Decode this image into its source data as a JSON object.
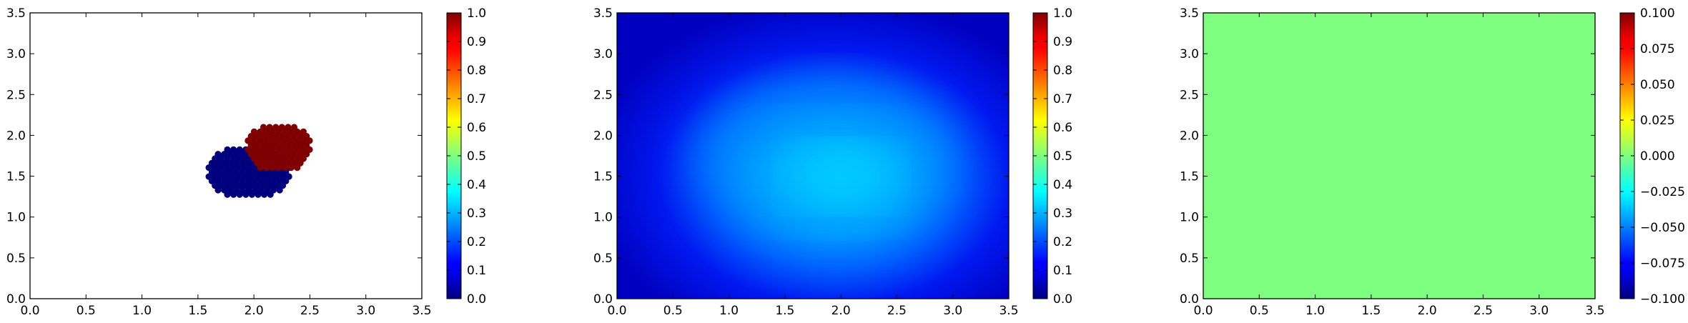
{
  "chart_data": [
    {
      "type": "scatter",
      "panel": "left",
      "xlim": [
        0,
        3.5
      ],
      "ylim": [
        0,
        3.5
      ],
      "x_ticks": [
        "0.0",
        "0.5",
        "1.0",
        "1.5",
        "2.0",
        "2.5",
        "3.0",
        "3.5"
      ],
      "y_ticks": [
        "0.0",
        "0.5",
        "1.0",
        "1.5",
        "2.0",
        "2.5",
        "3.0",
        "3.5"
      ],
      "colormap": "jet",
      "colorbar": {
        "range": [
          0,
          1
        ],
        "ticks": [
          "0.0",
          "0.1",
          "0.2",
          "0.3",
          "0.4",
          "0.5",
          "0.6",
          "0.7",
          "0.8",
          "0.9",
          "1.0"
        ]
      },
      "clusters": [
        {
          "value": 0.0,
          "color": "#00007f",
          "center": [
            1.95,
            1.55
          ],
          "radius_x": 0.38,
          "radius_y": 0.33
        },
        {
          "value": 1.0,
          "color": "#7f0000",
          "center": [
            2.22,
            1.85
          ],
          "radius_x": 0.3,
          "radius_y": 0.3
        }
      ],
      "grid": false
    },
    {
      "type": "heatmap",
      "panel": "middle",
      "xlim": [
        0,
        3.5
      ],
      "ylim": [
        0,
        3.5
      ],
      "x_ticks": [
        "0.0",
        "0.5",
        "1.0",
        "1.5",
        "2.0",
        "2.5",
        "3.0",
        "3.5"
      ],
      "y_ticks": [
        "0.0",
        "0.5",
        "1.0",
        "1.5",
        "2.0",
        "2.5",
        "3.0",
        "3.5"
      ],
      "colormap": "jet",
      "colorbar": {
        "range": [
          0,
          1
        ],
        "ticks": [
          "0.0",
          "0.1",
          "0.2",
          "0.3",
          "0.4",
          "0.5",
          "0.6",
          "0.7",
          "0.8",
          "0.9",
          "1.0"
        ]
      },
      "peak_location": [
        2.0,
        1.5
      ],
      "peak_value": 0.37,
      "edge_value": 0.07,
      "grid": false
    },
    {
      "type": "heatmap",
      "panel": "right",
      "xlim": [
        0,
        3.5
      ],
      "ylim": [
        0,
        3.5
      ],
      "x_ticks": [
        "0.0",
        "0.5",
        "1.0",
        "1.5",
        "2.0",
        "2.5",
        "3.0",
        "3.5"
      ],
      "y_ticks": [
        "0.0",
        "0.5",
        "1.0",
        "1.5",
        "2.0",
        "2.5",
        "3.0",
        "3.5"
      ],
      "colormap": "jet",
      "colorbar": {
        "range": [
          -0.1,
          0.1
        ],
        "ticks": [
          "−0.100",
          "−0.075",
          "−0.050",
          "−0.025",
          "0.000",
          "0.025",
          "0.050",
          "0.075",
          "0.100"
        ]
      },
      "uniform_value": 0.0,
      "fill_color": "#7fff7f",
      "grid": false
    }
  ]
}
